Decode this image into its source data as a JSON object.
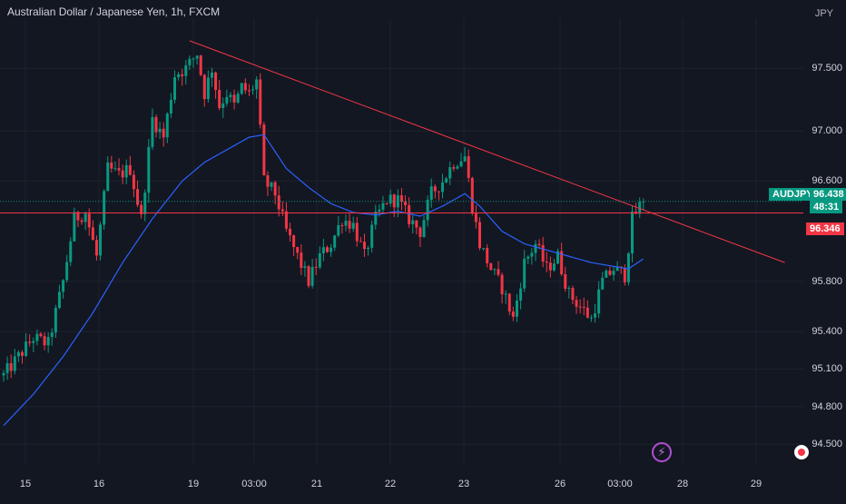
{
  "header": {
    "title": "Australian Dollar / Japanese Yen, 1h, FXCM",
    "currency": "JPY"
  },
  "price_scale": {
    "symbol_tag": "AUDJPY",
    "last_price": "96.438",
    "countdown": "48:31",
    "level_tag": "96.346"
  },
  "icons": {
    "alert": "lightning-icon",
    "record": "record-icon"
  },
  "colors": {
    "background": "#131722",
    "up_candle": "#089981",
    "down_candle": "#f23645",
    "moving_average": "#2962ff",
    "trendline": "#f23645",
    "horizontal_level": "#f23645",
    "text": "#d1d4dc"
  },
  "chart_data": {
    "type": "candlestick",
    "title": "Australian Dollar / Japanese Yen, 1h, FXCM",
    "ylabel": "JPY",
    "y_ticks": [
      94.5,
      94.8,
      95.1,
      95.4,
      95.8,
      96.6,
      97.0,
      97.5
    ],
    "y_tick_labels": [
      "94.500",
      "94.800",
      "95.100",
      "95.400",
      "95.800",
      "96.600",
      "97.000",
      "97.500"
    ],
    "x_tick_labels": [
      "15",
      "16",
      "19",
      "03:00",
      "21",
      "22",
      "23",
      "26",
      "03:00",
      "28",
      "29"
    ],
    "ylim": [
      94.35,
      97.9
    ],
    "grid": true,
    "close_path": [
      [
        0,
        95.05
      ],
      [
        4,
        95.2
      ],
      [
        8,
        95.35
      ],
      [
        12,
        95.3
      ],
      [
        16,
        95.8
      ],
      [
        19,
        96.3
      ],
      [
        22,
        96.35
      ],
      [
        25,
        96.0
      ],
      [
        28,
        96.7
      ],
      [
        31,
        96.65
      ],
      [
        34,
        96.7
      ],
      [
        37,
        96.3
      ],
      [
        40,
        97.1
      ],
      [
        43,
        96.95
      ],
      [
        46,
        97.45
      ],
      [
        49,
        97.5
      ],
      [
        52,
        97.62
      ],
      [
        54,
        97.3
      ],
      [
        56,
        97.5
      ],
      [
        58,
        97.2
      ],
      [
        60,
        97.3
      ],
      [
        62,
        97.2
      ],
      [
        64,
        97.35
      ],
      [
        66,
        97.3
      ],
      [
        68,
        97.4
      ],
      [
        70,
        96.6
      ],
      [
        73,
        96.5
      ],
      [
        76,
        96.2
      ],
      [
        79,
        96.0
      ],
      [
        82,
        95.8
      ],
      [
        85,
        96.0
      ],
      [
        88,
        96.1
      ],
      [
        91,
        96.3
      ],
      [
        94,
        96.25
      ],
      [
        97,
        96.0
      ],
      [
        100,
        96.3
      ],
      [
        103,
        96.45
      ],
      [
        106,
        96.45
      ],
      [
        109,
        96.3
      ],
      [
        112,
        96.2
      ],
      [
        115,
        96.5
      ],
      [
        118,
        96.6
      ],
      [
        121,
        96.75
      ],
      [
        124,
        96.8
      ],
      [
        126,
        96.4
      ],
      [
        128,
        96.1
      ],
      [
        131,
        95.9
      ],
      [
        134,
        95.75
      ],
      [
        137,
        95.5
      ],
      [
        140,
        95.95
      ],
      [
        143,
        96.1
      ],
      [
        146,
        95.9
      ],
      [
        149,
        96.0
      ],
      [
        152,
        95.7
      ],
      [
        155,
        95.6
      ],
      [
        158,
        95.5
      ],
      [
        161,
        95.8
      ],
      [
        164,
        95.9
      ],
      [
        167,
        95.85
      ],
      [
        169,
        96.3
      ],
      [
        171,
        96.4
      ],
      [
        172,
        96.438
      ]
    ],
    "ma_path": [
      [
        0,
        94.65
      ],
      [
        8,
        94.9
      ],
      [
        16,
        95.2
      ],
      [
        24,
        95.55
      ],
      [
        32,
        95.95
      ],
      [
        40,
        96.3
      ],
      [
        48,
        96.6
      ],
      [
        54,
        96.75
      ],
      [
        60,
        96.85
      ],
      [
        66,
        96.95
      ],
      [
        70,
        96.97
      ],
      [
        76,
        96.7
      ],
      [
        82,
        96.55
      ],
      [
        88,
        96.42
      ],
      [
        94,
        96.35
      ],
      [
        100,
        96.33
      ],
      [
        106,
        96.36
      ],
      [
        112,
        96.32
      ],
      [
        118,
        96.4
      ],
      [
        124,
        96.5
      ],
      [
        128,
        96.4
      ],
      [
        134,
        96.2
      ],
      [
        140,
        96.1
      ],
      [
        146,
        96.05
      ],
      [
        152,
        96.0
      ],
      [
        158,
        95.95
      ],
      [
        164,
        95.92
      ],
      [
        168,
        95.9
      ],
      [
        172,
        95.98
      ]
    ],
    "ma_period_label": "",
    "trendline": {
      "from": [
        50,
        97.72
      ],
      "to": [
        210,
        95.95
      ]
    },
    "horizontal_level": 96.346,
    "last_price": 96.438
  }
}
